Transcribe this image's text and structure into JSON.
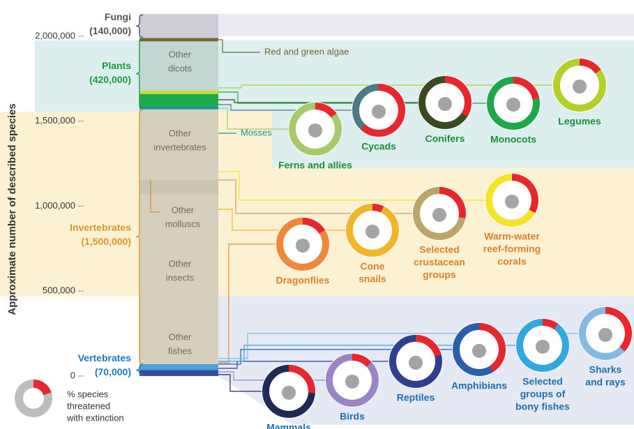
{
  "chart_data": {
    "type": "stacked_column",
    "ylabel": "Approximate number of described species",
    "ylim": [
      0,
      2130000
    ],
    "yticks": [
      0,
      {
        "value": 500000,
        "label": "500,000"
      },
      {
        "value": 1000000,
        "label": "1,000,000"
      },
      {
        "value": 1500000,
        "label": "1,500,000"
      },
      {
        "value": 2000000,
        "label": "2,000,000"
      }
    ],
    "grid": true,
    "segments": [
      {
        "value": 35000,
        "color": "#3b4a9c"
      },
      {
        "name": [
          "Other",
          "fishes"
        ],
        "value": 35000,
        "color": "#4aa3dc"
      },
      {
        "name": [
          "Other",
          "insects"
        ],
        "value": 1000000,
        "color": "#d6cfbd"
      },
      {
        "name": [
          "Other",
          "molluscs"
        ],
        "value": 85000,
        "color": "#cbc4b0"
      },
      {
        "name": [
          "Other",
          "invertebrates"
        ],
        "value": 415000,
        "color": "#d6cfbd"
      },
      {
        "name": [
          "Mosses"
        ],
        "value": 20000,
        "color": "#16998a"
      },
      {
        "value": 70000,
        "color": "#1daa48"
      },
      {
        "value": 20000,
        "color": "#c6d93a"
      },
      {
        "name": [
          "Other",
          "dicots"
        ],
        "value": 290000,
        "color": "#c3d6d2"
      },
      {
        "name": [
          "Red and green algae"
        ],
        "value": 20000,
        "color": "#6e6a2e"
      },
      {
        "value": 140000,
        "color": "#cfccd8"
      }
    ],
    "groups": [
      {
        "name": "Vertebrates",
        "value": 70000,
        "value_label": "(70,000)",
        "color": "#1f78b8"
      },
      {
        "name": "Invertebrates",
        "value": 1500000,
        "value_label": "(1,500,000)",
        "color": "#d9962a"
      },
      {
        "name": "Plants",
        "value": 420000,
        "value_label": "(420,000)",
        "color": "#1a9a3e"
      },
      {
        "name": "Fungi",
        "value": 140000,
        "value_label": "(140,000)",
        "color": "#555555"
      }
    ],
    "donut_groups": [
      {
        "color": "#1a8f3c",
        "donuts": [
          {
            "name": [
              "Ferns and allies"
            ],
            "value": 15,
            "color": "#a6c96a"
          },
          {
            "name": [
              "Cycads"
            ],
            "value": 62,
            "color": "#4d7a84"
          },
          {
            "name": [
              "Conifers"
            ],
            "value": 34,
            "color": "#3c4a22"
          },
          {
            "name": [
              "Monocots"
            ],
            "value": 22,
            "color": "#1fa84a"
          },
          {
            "name": [
              "Legumes"
            ],
            "value": 15,
            "color": "#b5cf2a"
          }
        ]
      },
      {
        "color": "#d9822a",
        "donuts": [
          {
            "name": [
              "Dragonflies"
            ],
            "value": 16,
            "color": "#f0883a"
          },
          {
            "name": [
              "Cone",
              "snails"
            ],
            "value": 7,
            "color": "#f2b52a"
          },
          {
            "name": [
              "Selected",
              "crustacean",
              "groups"
            ],
            "value": 28,
            "color": "#bda56a"
          },
          {
            "name": [
              "Warm-water",
              "reef-forming",
              "corals"
            ],
            "value": 33,
            "color": "#f7e32a"
          }
        ]
      },
      {
        "color": "#1f6fb0",
        "donuts": [
          {
            "name": [
              "Mammals"
            ],
            "value": 26,
            "color": "#1f2a55"
          },
          {
            "name": [
              "Birds"
            ],
            "value": 13,
            "color": "#9a86c4"
          },
          {
            "name": [
              "Reptiles"
            ],
            "value": 21,
            "color": "#2e3f8f"
          },
          {
            "name": [
              "Amphibians"
            ],
            "value": 41,
            "color": "#2a5ea8"
          },
          {
            "name": [
              "Selected",
              "groups of",
              "bony fishes"
            ],
            "value": 10,
            "color": "#31a9df"
          },
          {
            "name": [
              "Sharks",
              "and rays"
            ],
            "value": 37,
            "color": "#85b9e3"
          }
        ]
      }
    ],
    "threat_color": "#e8262b",
    "legend": {
      "label": [
        "% species",
        "threatened",
        "with extinction"
      ]
    }
  }
}
